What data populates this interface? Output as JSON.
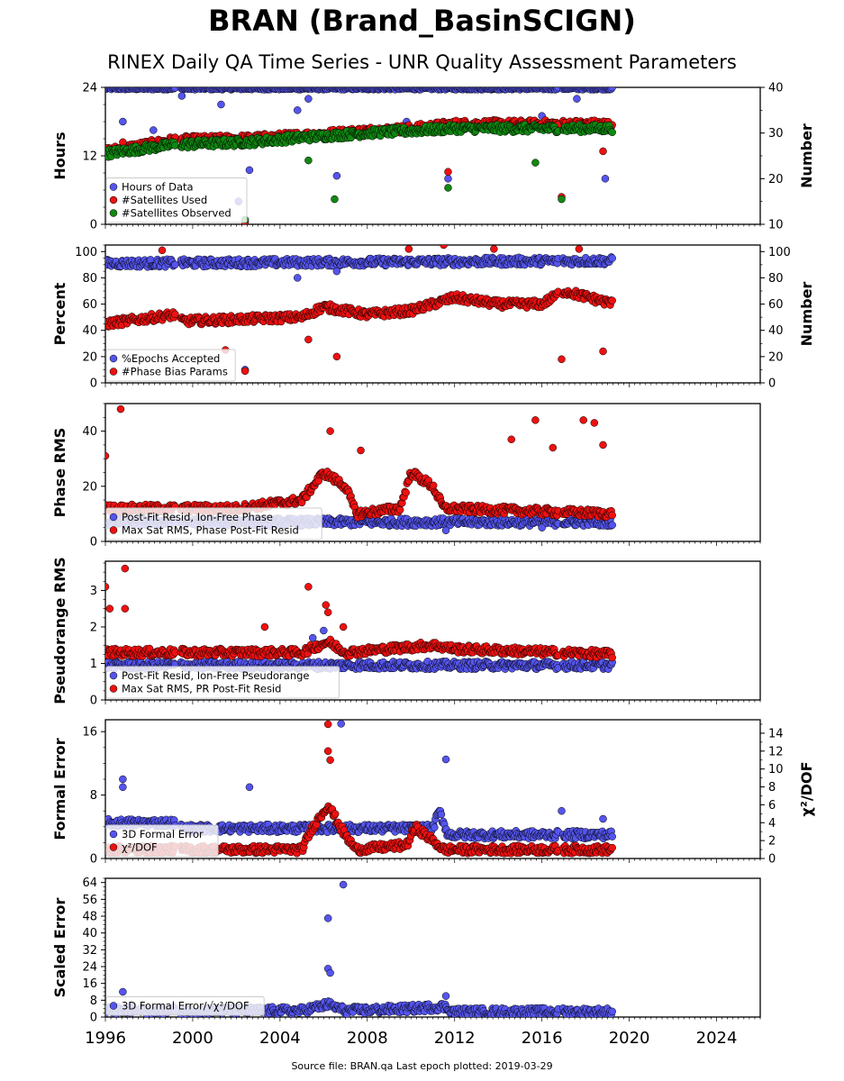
{
  "title": "BRAN (Brand_BasinSCIGN)",
  "subtitle": "RINEX Daily QA Time Series - UNR Quality Assessment Parameters",
  "footer": "Source file: BRAN.qa Last epoch plotted: 2019-03-29",
  "colors": {
    "blue": "#5555ee",
    "red": "#ee1111",
    "green": "#118811"
  },
  "chart_data": [
    {
      "type": "scatter",
      "id": "hours",
      "ylabel": "Hours",
      "ylabel_right": "Number",
      "xlim": [
        1996,
        2026
      ],
      "ylim": [
        0,
        24
      ],
      "yticks": [
        0,
        12,
        24
      ],
      "ylim_right": [
        10,
        40
      ],
      "yticks_right": [
        10,
        20,
        30,
        40
      ],
      "legend": [
        "Hours of Data",
        "#Satellites Used",
        "#Satellites Observed"
      ],
      "legend_position": "lower-left",
      "series": [
        {
          "name": "Hours of Data",
          "axis": "left",
          "color": "blue",
          "mean": 23.8,
          "jitter": 0.2,
          "x": [
            1996.8,
            1998.2,
            1999.5,
            2001.3,
            2002.1,
            2002.6,
            2004.8,
            2005.3,
            2006.6,
            2009.8,
            2011.0,
            2011.7,
            2016.0,
            2017.6,
            2018.9
          ],
          "y": [
            18.0,
            16.5,
            22.5,
            21.0,
            4.0,
            9.5,
            20.0,
            22.0,
            8.5,
            18.0,
            17.5,
            8.0,
            19.0,
            22.0,
            8.0
          ]
        },
        {
          "name": "#Satellites Used",
          "axis": "right",
          "color": "red",
          "trend": [
            [
              1996.0,
              26.0
            ],
            [
              1999.2,
              28.5
            ],
            [
              1999.5,
              28.5
            ],
            [
              2002.5,
              28.8
            ],
            [
              2005.0,
              29.5
            ],
            [
              2008.0,
              30.5
            ],
            [
              2010.0,
              31.0
            ],
            [
              2012.0,
              32.0
            ],
            [
              2016.0,
              32.0
            ],
            [
              2019.3,
              32.0
            ]
          ],
          "x": [
            1996.8,
            2002.4,
            2011.7,
            2016.9,
            2018.8
          ],
          "y": [
            28.0,
            10.5,
            21.5,
            16.0,
            26.0
          ]
        },
        {
          "name": "#Satellites Observed",
          "axis": "right",
          "color": "green",
          "trend": [
            [
              1996.0,
              25.5
            ],
            [
              1999.2,
              27.5
            ],
            [
              1999.5,
              27.5
            ],
            [
              2002.5,
              28.0
            ],
            [
              2005.0,
              29.0
            ],
            [
              2008.0,
              30.0
            ],
            [
              2010.0,
              30.5
            ],
            [
              2012.0,
              31.0
            ],
            [
              2016.0,
              31.0
            ],
            [
              2019.3,
              31.0
            ]
          ],
          "x": [
            2002.4,
            2005.3,
            2006.5,
            2011.7,
            2015.7,
            2016.9
          ],
          "y": [
            11.0,
            24.0,
            15.5,
            18.0,
            23.5,
            15.5
          ]
        }
      ]
    },
    {
      "type": "scatter",
      "id": "percent",
      "ylabel": "Percent",
      "ylabel_right": "Number",
      "xlim": [
        1996,
        2026
      ],
      "ylim": [
        0,
        105
      ],
      "yticks": [
        0,
        20,
        40,
        60,
        80,
        100
      ],
      "ylim_right": [
        0,
        105
      ],
      "yticks_right": [
        0,
        20,
        40,
        60,
        80,
        100
      ],
      "legend": [
        "%Epochs Accepted",
        "#Phase Bias Params"
      ],
      "legend_position": "lower-left",
      "series": [
        {
          "name": "%Epochs Accepted",
          "axis": "left",
          "color": "blue",
          "trend": [
            [
              1996.0,
              91.0
            ],
            [
              2019.3,
              93.0
            ]
          ],
          "x": [
            2002.4,
            2004.8,
            2006.6
          ],
          "y": [
            10.0,
            80.0,
            85.0
          ]
        },
        {
          "name": "#Phase Bias Params",
          "axis": "right",
          "color": "red",
          "trend": [
            [
              1996.0,
              45.0
            ],
            [
              1999.2,
              52.0
            ],
            [
              1999.5,
              47.0
            ],
            [
              2005.0,
              50.0
            ],
            [
              2006.0,
              58.0
            ],
            [
              2008.0,
              52.0
            ],
            [
              2010.0,
              55.0
            ],
            [
              2012.0,
              65.0
            ],
            [
              2014.0,
              60.0
            ],
            [
              2016.0,
              60.0
            ],
            [
              2017.0,
              70.0
            ],
            [
              2019.3,
              60.0
            ]
          ],
          "x": [
            1998.6,
            2001.5,
            2002.4,
            2005.3,
            2006.6,
            2009.9,
            2011.5,
            2013.8,
            2016.9,
            2017.7,
            2018.8
          ],
          "y": [
            101.0,
            25.0,
            9.0,
            33.0,
            20.0,
            102.0,
            105.0,
            102.0,
            18.0,
            102.0,
            24.0
          ]
        }
      ]
    },
    {
      "type": "scatter",
      "id": "phase",
      "ylabel": "Phase RMS",
      "xlim": [
        1996,
        2026
      ],
      "ylim": [
        0,
        50
      ],
      "yticks": [
        0,
        20,
        40
      ],
      "legend": [
        "Post-Fit Resid, Ion-Free Phase",
        "Max Sat RMS, Phase Post-Fit Resid"
      ],
      "legend_position": "lower-left",
      "series": [
        {
          "name": "Post-Fit Resid, Ion-Free Phase",
          "color": "blue",
          "trend": [
            [
              1996.0,
              7.0
            ],
            [
              2019.3,
              7.0
            ]
          ],
          "x": [
            2011.6,
            2016.0
          ],
          "y": [
            4.0,
            5.0
          ]
        },
        {
          "name": "Max Sat RMS, Phase Post-Fit Resid",
          "color": "red",
          "trend": [
            [
              1996.0,
              12.0
            ],
            [
              2002.0,
              12.0
            ],
            [
              2005.0,
              15.0
            ],
            [
              2006.0,
              25.0
            ],
            [
              2007.0,
              20.0
            ],
            [
              2007.5,
              10.0
            ],
            [
              2009.5,
              12.0
            ],
            [
              2010.0,
              25.0
            ],
            [
              2011.0,
              20.0
            ],
            [
              2011.5,
              12.0
            ],
            [
              2019.3,
              10.0
            ]
          ],
          "x": [
            1996.0,
            1996.7,
            2006.3,
            2007.7,
            2014.6,
            2015.7,
            2016.5,
            2017.9,
            2018.4,
            2018.8
          ],
          "y": [
            31.0,
            48.0,
            40.0,
            33.0,
            37.0,
            44.0,
            34.0,
            44.0,
            43.0,
            35.0
          ]
        }
      ]
    },
    {
      "type": "scatter",
      "id": "pseudorange",
      "ylabel": "Pseudorange RMS",
      "xlim": [
        1996,
        2026
      ],
      "ylim": [
        0,
        3.8
      ],
      "yticks": [
        0,
        1,
        2,
        3
      ],
      "legend": [
        "Post-Fit Resid, Ion-Free Pseudorange",
        "Max Sat RMS, PR Post-Fit Resid"
      ],
      "legend_position": "lower-left",
      "series": [
        {
          "name": "Post-Fit Resid, Ion-Free Pseudorange",
          "color": "blue",
          "trend": [
            [
              1996.0,
              0.95
            ],
            [
              2019.3,
              0.95
            ]
          ],
          "x": [
            2005.5,
            2006.0
          ],
          "y": [
            1.7,
            1.9
          ]
        },
        {
          "name": "Max Sat RMS, PR Post-Fit Resid",
          "color": "red",
          "trend": [
            [
              1996.0,
              1.3
            ],
            [
              2005.0,
              1.3
            ],
            [
              2006.2,
              1.6
            ],
            [
              2007.0,
              1.3
            ],
            [
              2011.0,
              1.5
            ],
            [
              2012.0,
              1.4
            ],
            [
              2019.3,
              1.25
            ]
          ],
          "x": [
            1996.0,
            1996.2,
            1996.9,
            1996.9,
            2003.3,
            2005.3,
            2006.1,
            2006.2,
            2006.9
          ],
          "y": [
            3.1,
            2.5,
            3.6,
            2.5,
            2.0,
            3.1,
            2.6,
            2.4,
            2.0
          ]
        }
      ]
    },
    {
      "type": "scatter",
      "id": "formal",
      "ylabel": "Formal Error",
      "ylabel_right": "χ²/DOF",
      "xlim": [
        1996,
        2026
      ],
      "ylim": [
        0,
        17.5
      ],
      "yticks": [
        0,
        8,
        16
      ],
      "ylim_right": [
        0,
        15.5
      ],
      "yticks_right": [
        0,
        2,
        4,
        6,
        8,
        10,
        12,
        14
      ],
      "legend": [
        "3D Formal Error",
        "χ²/DOF"
      ],
      "legend_position": "lower-left",
      "series": [
        {
          "name": "3D Formal Error",
          "axis": "left",
          "color": "blue",
          "trend": [
            [
              1996.0,
              4.5
            ],
            [
              1999.2,
              4.5
            ],
            [
              1999.5,
              3.8
            ],
            [
              2011.0,
              3.8
            ],
            [
              2011.3,
              6.0
            ],
            [
              2011.7,
              3.0
            ],
            [
              2019.3,
              3.0
            ]
          ],
          "x": [
            1996.8,
            1996.8,
            2002.6,
            2006.8,
            2011.6,
            2016.9,
            2018.8
          ],
          "y": [
            10.0,
            9.0,
            9.0,
            17.0,
            12.5,
            6.0,
            5.0
          ]
        },
        {
          "name": "χ²/DOF",
          "axis": "right",
          "color": "red",
          "trend": [
            [
              1996.0,
              1.0
            ],
            [
              2005.0,
              1.0
            ],
            [
              2005.5,
              3.5
            ],
            [
              2006.2,
              6.0
            ],
            [
              2007.0,
              2.5
            ],
            [
              2007.5,
              1.0
            ],
            [
              2009.8,
              1.5
            ],
            [
              2010.2,
              3.5
            ],
            [
              2011.0,
              2.0
            ],
            [
              2011.5,
              1.0
            ],
            [
              2019.3,
              1.0
            ]
          ],
          "x": [
            2006.2,
            2006.2,
            2006.3
          ],
          "y": [
            15.0,
            12.0,
            11.0
          ]
        }
      ]
    },
    {
      "type": "scatter",
      "id": "scaled",
      "ylabel": "Scaled Error",
      "xlim": [
        1996,
        2026
      ],
      "ylim": [
        0,
        66
      ],
      "yticks": [
        0,
        8,
        16,
        24,
        32,
        40,
        48,
        56,
        64
      ],
      "xticks": [
        1996,
        2000,
        2004,
        2008,
        2012,
        2016,
        2020,
        2024
      ],
      "legend": [
        "3D Formal Error/√χ²/DOF"
      ],
      "legend_position": "lower-left",
      "series": [
        {
          "name": "3D Formal Error/√χ²/DOF",
          "color": "blue",
          "trend": [
            [
              1996.0,
              3.0
            ],
            [
              2005.0,
              3.0
            ],
            [
              2006.2,
              6.0
            ],
            [
              2007.0,
              3.0
            ],
            [
              2010.0,
              4.0
            ],
            [
              2011.5,
              5.0
            ],
            [
              2012.0,
              2.5
            ],
            [
              2019.3,
              2.5
            ]
          ],
          "x": [
            1996.8,
            2006.2,
            2006.2,
            2006.3,
            2006.9,
            2011.6
          ],
          "y": [
            12.0,
            47.0,
            23.0,
            21.0,
            63.0,
            10.0
          ]
        }
      ]
    }
  ]
}
